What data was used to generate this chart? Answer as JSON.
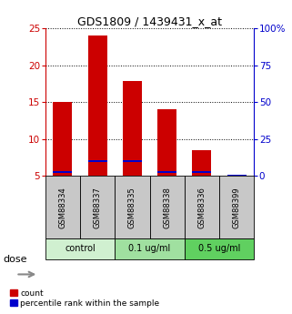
{
  "title": "GDS1809 / 1439431_x_at",
  "samples": [
    "GSM88334",
    "GSM88337",
    "GSM88335",
    "GSM88338",
    "GSM88336",
    "GSM88399"
  ],
  "count_values": [
    15.0,
    24.0,
    17.8,
    14.0,
    8.5,
    5.0
  ],
  "percentile_values": [
    5.5,
    7.0,
    7.0,
    5.5,
    5.5,
    5.0
  ],
  "groups": [
    {
      "label": "control",
      "start": 0,
      "end": 2
    },
    {
      "label": "0.1 ug/ml",
      "start": 2,
      "end": 4
    },
    {
      "label": "0.5 ug/ml",
      "start": 4,
      "end": 6
    }
  ],
  "dose_label": "dose",
  "ylim_left": [
    5,
    25
  ],
  "ylim_right": [
    0,
    100
  ],
  "yticks_left": [
    5,
    10,
    15,
    20,
    25
  ],
  "yticks_right": [
    0,
    25,
    50,
    75,
    100
  ],
  "ytick_labels_right": [
    "0",
    "25",
    "50",
    "75",
    "100%"
  ],
  "bar_width": 0.55,
  "red_color": "#cc0000",
  "blue_color": "#0000cc",
  "bg_sample_label": "#c8c8c8",
  "bg_group_control": "#d0f0d0",
  "bg_group_01": "#a0e0a0",
  "bg_group_05": "#60d060",
  "legend_count": "count",
  "legend_pct": "percentile rank within the sample"
}
